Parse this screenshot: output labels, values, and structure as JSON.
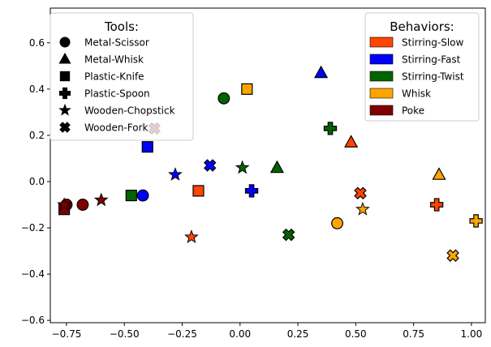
{
  "chart_data": {
    "type": "scatter",
    "title": "",
    "xlabel": "",
    "ylabel": "",
    "xlim": [
      -0.82,
      1.06
    ],
    "ylim": [
      -0.61,
      0.75
    ],
    "xticks": [
      -0.75,
      -0.5,
      -0.25,
      0.0,
      0.25,
      0.5,
      0.75,
      1.0
    ],
    "yticks": [
      -0.6,
      -0.4,
      -0.2,
      0.0,
      0.2,
      0.4,
      0.6
    ],
    "xtick_labels": [
      "−0.75",
      "−0.50",
      "−0.25",
      "0.00",
      "0.25",
      "0.50",
      "0.75",
      "1.00"
    ],
    "ytick_labels": [
      "−0.6",
      "−0.4",
      "−0.2",
      "0.0",
      "0.2",
      "0.4",
      "0.6"
    ],
    "grid": false,
    "tools_legend": {
      "title": "Tools:",
      "placement": "top-left",
      "entries": [
        {
          "label": "Metal-Scissor",
          "marker": "circle"
        },
        {
          "label": "Metal-Whisk",
          "marker": "triangle"
        },
        {
          "label": "Plastic-Knife",
          "marker": "square"
        },
        {
          "label": "Plastic-Spoon",
          "marker": "plus"
        },
        {
          "label": "Wooden-Chopstick",
          "marker": "star"
        },
        {
          "label": "Wooden-Fork",
          "marker": "x"
        }
      ]
    },
    "behaviors_legend": {
      "title": "Behaviors:",
      "placement": "top-right",
      "entries": [
        {
          "label": "Stirring-Slow",
          "color": "#ff4500"
        },
        {
          "label": "Stirring-Fast",
          "color": "#0000ff"
        },
        {
          "label": "Stirring-Twist",
          "color": "#006400"
        },
        {
          "label": "Whisk",
          "color": "#ffa500"
        },
        {
          "label": "Poke",
          "color": "#800000"
        }
      ]
    },
    "points": [
      {
        "x": -0.75,
        "y": -0.1,
        "marker": "circle",
        "color": "#800000"
      },
      {
        "x": -0.68,
        "y": -0.1,
        "marker": "circle",
        "color": "#800000"
      },
      {
        "x": -0.42,
        "y": -0.06,
        "marker": "circle",
        "color": "#0000ff"
      },
      {
        "x": -0.07,
        "y": 0.36,
        "marker": "circle",
        "color": "#006400"
      },
      {
        "x": 0.42,
        "y": -0.18,
        "marker": "circle",
        "color": "#ffa500"
      },
      {
        "x": 0.35,
        "y": 0.47,
        "marker": "triangle",
        "color": "#0000ff"
      },
      {
        "x": 0.16,
        "y": 0.06,
        "marker": "triangle",
        "color": "#006400"
      },
      {
        "x": 0.48,
        "y": 0.17,
        "marker": "triangle",
        "color": "#ff4500"
      },
      {
        "x": 0.86,
        "y": 0.03,
        "marker": "triangle",
        "color": "#ffa500"
      },
      {
        "x": -0.76,
        "y": -0.12,
        "marker": "square",
        "color": "#800000"
      },
      {
        "x": -0.47,
        "y": -0.06,
        "marker": "square",
        "color": "#006400"
      },
      {
        "x": -0.4,
        "y": 0.15,
        "marker": "square",
        "color": "#0000ff"
      },
      {
        "x": -0.18,
        "y": -0.04,
        "marker": "square",
        "color": "#ff4500"
      },
      {
        "x": 0.03,
        "y": 0.4,
        "marker": "square",
        "color": "#ffa500"
      },
      {
        "x": 0.05,
        "y": -0.04,
        "marker": "plus",
        "color": "#0000ff"
      },
      {
        "x": 0.39,
        "y": 0.23,
        "marker": "plus",
        "color": "#006400"
      },
      {
        "x": 0.85,
        "y": -0.1,
        "marker": "plus",
        "color": "#ff4500"
      },
      {
        "x": 1.02,
        "y": -0.17,
        "marker": "plus",
        "color": "#ffa500"
      },
      {
        "x": -0.76,
        "y": -0.1,
        "marker": "star",
        "color": "#800000"
      },
      {
        "x": -0.6,
        "y": -0.08,
        "marker": "star",
        "color": "#800000"
      },
      {
        "x": -0.28,
        "y": 0.03,
        "marker": "star",
        "color": "#0000ff"
      },
      {
        "x": -0.21,
        "y": -0.24,
        "marker": "star",
        "color": "#ff4500"
      },
      {
        "x": 0.01,
        "y": 0.06,
        "marker": "star",
        "color": "#006400"
      },
      {
        "x": 0.53,
        "y": -0.12,
        "marker": "star",
        "color": "#ffa500"
      },
      {
        "x": -0.37,
        "y": 0.23,
        "marker": "x",
        "color": "#800000"
      },
      {
        "x": -0.13,
        "y": 0.07,
        "marker": "x",
        "color": "#0000ff"
      },
      {
        "x": 0.21,
        "y": -0.23,
        "marker": "x",
        "color": "#006400"
      },
      {
        "x": 0.52,
        "y": -0.05,
        "marker": "x",
        "color": "#ff4500"
      },
      {
        "x": 0.92,
        "y": -0.32,
        "marker": "x",
        "color": "#ffa500"
      }
    ]
  }
}
